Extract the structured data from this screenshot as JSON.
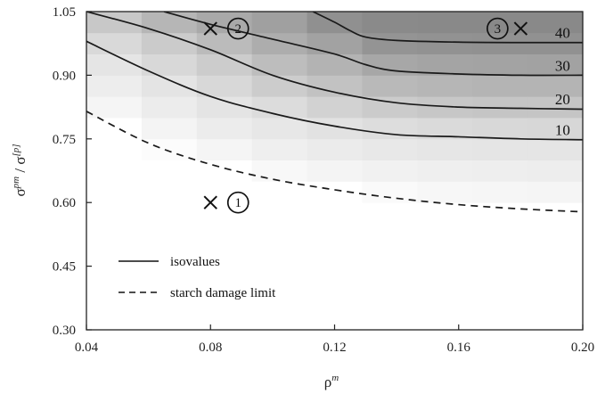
{
  "chart_data": {
    "type": "heatmap",
    "title": "",
    "xlabel": "ρ",
    "xlabel_sup": "m",
    "ylabel": "σ",
    "ylabel_sup": "pm",
    "ylabel_sep": " / σ",
    "ylabel_sup2": "[p]",
    "xlim": [
      0.04,
      0.2
    ],
    "ylim": [
      0.3,
      1.05
    ],
    "xticks": [
      0.04,
      0.08,
      0.12,
      0.16,
      0.2
    ],
    "xtick_labels": [
      "0.04",
      "0.08",
      "0.12",
      "0.16",
      "0.20"
    ],
    "yticks": [
      0.3,
      0.45,
      0.6,
      0.75,
      0.9,
      1.05
    ],
    "ytick_labels": [
      "0.30",
      "0.45",
      "0.60",
      "0.75",
      "0.90",
      "1.05"
    ],
    "grid": false,
    "legend_position": "bottom-left",
    "colors": {
      "frame": "#222222",
      "line": "#1a1a1a",
      "cell_min": "#ffffff",
      "cell_max": "#6f6f6f"
    },
    "isolines": [
      {
        "label": "10",
        "style": "solid",
        "x": [
          0.04,
          0.06,
          0.08,
          0.1,
          0.12,
          0.14,
          0.16,
          0.18,
          0.2
        ],
        "y": [
          0.98,
          0.91,
          0.85,
          0.81,
          0.78,
          0.76,
          0.755,
          0.75,
          0.748
        ]
      },
      {
        "label": "20",
        "style": "solid",
        "x": [
          0.04,
          0.06,
          0.08,
          0.1,
          0.12,
          0.14,
          0.16,
          0.18,
          0.2
        ],
        "y": [
          1.05,
          1.01,
          0.96,
          0.9,
          0.86,
          0.835,
          0.825,
          0.822,
          0.82
        ]
      },
      {
        "label": "30",
        "style": "solid",
        "x": [
          0.065,
          0.08,
          0.1,
          0.12,
          0.13,
          0.14,
          0.16,
          0.18,
          0.2
        ],
        "y": [
          1.05,
          1.02,
          0.985,
          0.95,
          0.925,
          0.91,
          0.903,
          0.9,
          0.9
        ]
      },
      {
        "label": "40",
        "style": "solid",
        "x": [
          0.113,
          0.12,
          0.125,
          0.13,
          0.14,
          0.16,
          0.18,
          0.2
        ],
        "y": [
          1.05,
          1.025,
          1.005,
          0.99,
          0.982,
          0.978,
          0.977,
          0.977
        ]
      }
    ],
    "damage_limit": {
      "label": "starch damage limit",
      "style": "dashed",
      "x": [
        0.04,
        0.06,
        0.08,
        0.1,
        0.12,
        0.14,
        0.16,
        0.18,
        0.2
      ],
      "y": [
        0.815,
        0.74,
        0.69,
        0.655,
        0.63,
        0.61,
        0.595,
        0.585,
        0.578
      ]
    },
    "points": [
      {
        "id": "1",
        "x": 0.08,
        "y": 0.6
      },
      {
        "id": "2",
        "x": 0.08,
        "y": 1.01
      },
      {
        "id": "3",
        "x": 0.18,
        "y": 1.01
      }
    ],
    "legend": [
      {
        "label": "isovalues",
        "style": "solid"
      },
      {
        "label": "starch damage limit",
        "style": "dashed"
      }
    ]
  }
}
